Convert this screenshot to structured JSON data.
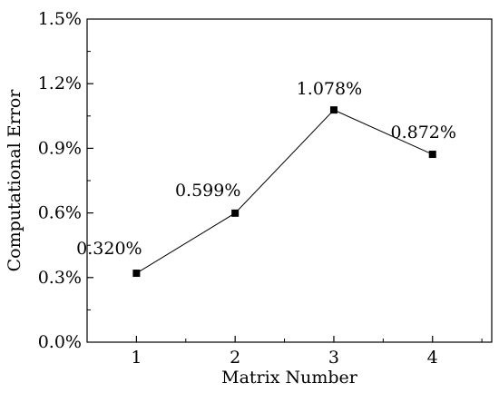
{
  "chart_data": {
    "type": "line",
    "xlabel": "Matrix Number",
    "ylabel": "Computational Error",
    "categories": [
      "1",
      "2",
      "3",
      "4"
    ],
    "x": [
      1,
      2,
      3,
      4
    ],
    "xlim": [
      0.5,
      4.6
    ],
    "ylim": [
      0,
      1.5
    ],
    "y_ticks": [
      0,
      0.3,
      0.6,
      0.9,
      1.2,
      1.5
    ],
    "y_tick_labels": [
      "0.0%",
      "0.3%",
      "0.6%",
      "0.9%",
      "1.2%",
      "1.5%"
    ],
    "grid": false,
    "legend": "none",
    "series": [
      {
        "values": [
          0.32,
          0.599,
          1.078,
          0.872
        ],
        "data_labels": [
          "0.320%",
          "0.599%",
          "1.078%",
          "0.872%"
        ],
        "marker": "square",
        "color": "#000000"
      }
    ]
  }
}
